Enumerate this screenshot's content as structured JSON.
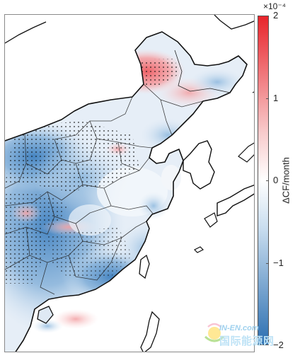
{
  "colorbar": {
    "exponent_label": "×10⁻⁴",
    "unit_label": "ΔCF/month",
    "ticks": [
      {
        "value": 2,
        "label": "2"
      },
      {
        "value": 1,
        "label": "1"
      },
      {
        "value": 0,
        "label": "0"
      },
      {
        "value": -1,
        "label": "−1"
      },
      {
        "value": -2,
        "label": "−2"
      }
    ],
    "vmin": -2,
    "vmax": 2,
    "colors": {
      "max": "#e8242b",
      "mid": "#ffffff",
      "min": "#2c6fb1"
    }
  },
  "map": {
    "region": "Eastern China and surroundings",
    "colors": {
      "positive": "#e8242b",
      "negative": "#2c6fb1",
      "coastline": "#111111",
      "border": "#333333"
    },
    "stippling": "dots mark significant grid cells"
  },
  "watermark": {
    "top_text": "IN-EN.com",
    "text": "国际能源网"
  }
}
